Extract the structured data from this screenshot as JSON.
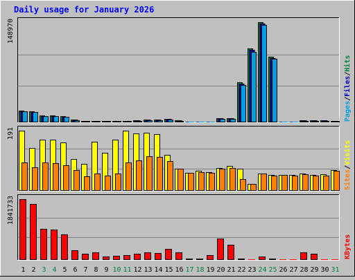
{
  "chart_data": [
    {
      "type": "bar",
      "title": "Daily usage for January 2026",
      "ymax_label": "148970",
      "legend": [
        {
          "text": "Pages",
          "color": "#00a0e0"
        },
        {
          "text": "Files",
          "color": "#0000c0"
        },
        {
          "text": "Hits",
          "color": "#008040"
        }
      ],
      "categories": [
        "1",
        "2",
        "3",
        "4",
        "5",
        "6",
        "7",
        "8",
        "9",
        "10",
        "11",
        "12",
        "13",
        "14",
        "15",
        "16",
        "17",
        "18",
        "19",
        "20",
        "21",
        "22",
        "23",
        "24",
        "25",
        "26",
        "27",
        "28",
        "29",
        "30",
        "31"
      ],
      "weekend_days": [
        "3",
        "4",
        "10",
        "11",
        "17",
        "18",
        "24",
        "25",
        "31"
      ],
      "ylim": [
        0,
        148970
      ],
      "series": [
        {
          "name": "Hits",
          "color": "#008040",
          "values": [
            17000,
            16000,
            10000,
            10000,
            9000,
            4000,
            2000,
            2000,
            2000,
            2000,
            2000,
            3000,
            4000,
            4000,
            5000,
            3000,
            1500,
            1500,
            1500,
            6000,
            6000,
            60000,
            110000,
            148970,
            98000,
            1500,
            1500,
            3000,
            3000,
            3000,
            2000
          ]
        },
        {
          "name": "Files",
          "color": "#0000c0",
          "values": [
            16500,
            15500,
            9500,
            9500,
            8500,
            3800,
            1800,
            1800,
            1800,
            1800,
            1800,
            2800,
            3800,
            3800,
            4800,
            2800,
            1300,
            1300,
            1300,
            5800,
            5800,
            58000,
            108000,
            147000,
            96000,
            1300,
            1300,
            2800,
            2800,
            2800,
            1800
          ]
        },
        {
          "name": "Pages",
          "color": "#00a0e0",
          "values": [
            16000,
            15000,
            9000,
            9000,
            8000,
            3500,
            1600,
            1600,
            1600,
            1600,
            1600,
            2500,
            3500,
            3500,
            4500,
            2500,
            1200,
            1200,
            1200,
            5500,
            5500,
            55000,
            105000,
            145000,
            95000,
            1200,
            1200,
            2500,
            2500,
            2500,
            1600
          ]
        }
      ]
    },
    {
      "type": "bar",
      "ymax_label": "191",
      "legend": [
        {
          "text": "Sites",
          "color": "#ff8000"
        },
        {
          "text": "Visits",
          "color": "#ffff00"
        }
      ],
      "categories": [
        "1",
        "2",
        "3",
        "4",
        "5",
        "6",
        "7",
        "8",
        "9",
        "10",
        "11",
        "12",
        "13",
        "14",
        "15",
        "16",
        "17",
        "18",
        "19",
        "20",
        "21",
        "22",
        "23",
        "24",
        "25",
        "26",
        "27",
        "28",
        "29",
        "30",
        "31"
      ],
      "ylim": [
        0,
        191
      ],
      "series": [
        {
          "name": "Visits",
          "color": "#ffff00",
          "values": [
            190,
            136,
            162,
            162,
            153,
            102,
            85,
            156,
            120,
            163,
            191,
            183,
            185,
            180,
            115,
            70,
            57,
            64,
            60,
            72,
            78,
            70,
            22,
            55,
            50,
            50,
            50,
            55,
            50,
            52,
            65
          ]
        },
        {
          "name": "Sites",
          "color": "#ff8000",
          "values": [
            91,
            74,
            90,
            87,
            82,
            65,
            46,
            54,
            48,
            54,
            89,
            97,
            110,
            107,
            94,
            70,
            56,
            60,
            56,
            70,
            72,
            38,
            22,
            55,
            48,
            50,
            48,
            52,
            48,
            48,
            64
          ]
        }
      ]
    },
    {
      "type": "bar",
      "ymax_label": "1841733",
      "legend": [
        {
          "text": "KBytes",
          "color": "#ff0000"
        }
      ],
      "categories": [
        "1",
        "2",
        "3",
        "4",
        "5",
        "6",
        "7",
        "8",
        "9",
        "10",
        "11",
        "12",
        "13",
        "14",
        "15",
        "16",
        "17",
        "18",
        "19",
        "20",
        "21",
        "22",
        "23",
        "24",
        "25",
        "26",
        "27",
        "28",
        "29",
        "30",
        "31"
      ],
      "ylim": [
        0,
        1841733
      ],
      "series": [
        {
          "name": "KBytes",
          "color": "#ff0000",
          "values": [
            1841733,
            1700000,
            950000,
            930000,
            780000,
            300000,
            180000,
            230000,
            100000,
            130000,
            150000,
            180000,
            220000,
            210000,
            340000,
            230000,
            50000,
            50000,
            150000,
            640000,
            460000,
            40000,
            30000,
            100000,
            35000,
            30000,
            30000,
            220000,
            180000,
            30000,
            30000
          ]
        }
      ]
    }
  ]
}
